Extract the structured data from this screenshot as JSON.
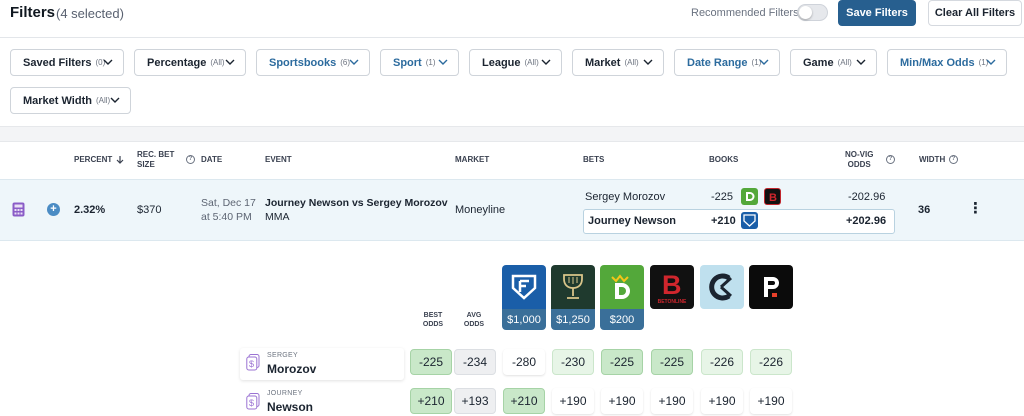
{
  "header": {
    "title": "Filters",
    "selected": "(4 selected)",
    "recommended_label": "Recommended Filters",
    "save_label": "Save Filters",
    "clear_label": "Clear All Filters"
  },
  "filters": [
    {
      "label": "Saved Filters",
      "count": "(0)"
    },
    {
      "label": "Percentage",
      "count": "(All)"
    },
    {
      "label": "Sportsbooks",
      "count": "(6)"
    },
    {
      "label": "Sport",
      "count": "(1)"
    },
    {
      "label": "League",
      "count": "(All)"
    },
    {
      "label": "Market",
      "count": "(All)"
    },
    {
      "label": "Date Range",
      "count": "(1)"
    },
    {
      "label": "Game",
      "count": "(All)"
    },
    {
      "label": "Min/Max Odds",
      "count": "(1)"
    },
    {
      "label": "Market Width",
      "count": "(All)"
    }
  ],
  "columns": {
    "percent": "PERCENT",
    "rec_bet": "REC. BET",
    "size": "SIZE",
    "date": "DATE",
    "event": "EVENT",
    "market": "MARKET",
    "bets": "BETS",
    "books": "BOOKS",
    "novig1": "NO-VIG",
    "novig2": "ODDS",
    "width": "WIDTH",
    "info": "?"
  },
  "row": {
    "percent": "2.32%",
    "bet_size": "$370",
    "date_line1": "Sat, Dec 17",
    "date_line2": "at 5:40 PM",
    "event": "Journey Newson vs Sergey Morozov",
    "sport": "MMA",
    "market": "Moneyline",
    "bets": [
      {
        "name": "Sergey Morozov",
        "odds": "-225",
        "novig": "-202.96"
      },
      {
        "name": "Journey Newson",
        "odds": "+210",
        "novig": "+202.96"
      }
    ],
    "width": "36",
    "more": "⋮",
    "expand": "+"
  },
  "detail": {
    "best_odds_1": "BEST",
    "best_odds_2": "ODDS",
    "avg_odds_1": "AVG",
    "avg_odds_2": "ODDS",
    "books": [
      {
        "icon": "fanduel-icon",
        "amount": "$1,000",
        "color": "#1a5ea8"
      },
      {
        "icon": "caesars-icon",
        "amount": "$1,250",
        "color": "#1f3a2e"
      },
      {
        "icon": "draftkings-icon",
        "amount": "$200",
        "color": "#53a83a"
      },
      {
        "icon": "betonline-icon",
        "label": "BETONLINE",
        "color": "#111111"
      },
      {
        "icon": "kalshi-icon",
        "color": "#bfe0ee"
      },
      {
        "icon": "pointsbet-icon",
        "color": "#0b0b0b"
      }
    ],
    "rows": [
      {
        "first": "SERGEY",
        "last": "Morozov",
        "best": "-225",
        "avg": "-234",
        "odds": [
          "-280",
          "-230",
          "-225",
          "-225",
          "-226",
          "-226"
        ]
      },
      {
        "first": "JOURNEY",
        "last": "Newson",
        "best": "+210",
        "avg": "+193",
        "odds": [
          "+210",
          "+190",
          "+190",
          "+190",
          "+190",
          "+190"
        ]
      }
    ]
  }
}
